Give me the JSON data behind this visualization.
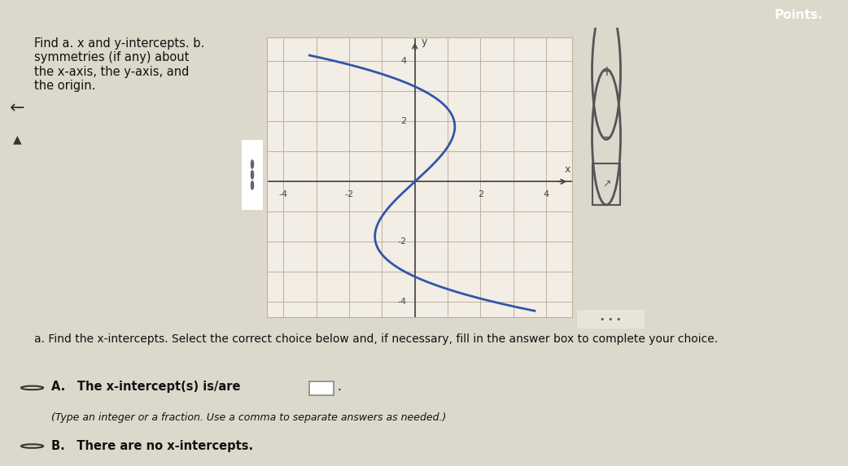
{
  "title_text": "Find a. x and y-intercepts. b.\nsymmetries (if any) about\nthe x-axis, the y-axis, and\nthe origin.",
  "question_text": "a. Find the x-intercepts. Select the correct choice below and, if necessary, fill in the answer box to complete your choice.",
  "choice_A_text": "A. The x-intercept(s) is/are",
  "choice_A_sub": "(Type an integer or a fraction. Use a comma to separate answers as needed.)",
  "choice_B_text": "B. There are no x-intercepts.",
  "bg_color": "#ddd8cc",
  "graph_bg": "#f2ede5",
  "grid_color": "#c0b09a",
  "axis_color": "#444444",
  "curve_color": "#3355aa",
  "top_bar_color": "#2a7a7a",
  "xlim": [
    -4.5,
    4.8
  ],
  "ylim": [
    -4.5,
    4.8
  ],
  "xticks": [
    -4,
    -2,
    2,
    4
  ],
  "yticks": [
    -4,
    -2,
    2,
    4
  ]
}
